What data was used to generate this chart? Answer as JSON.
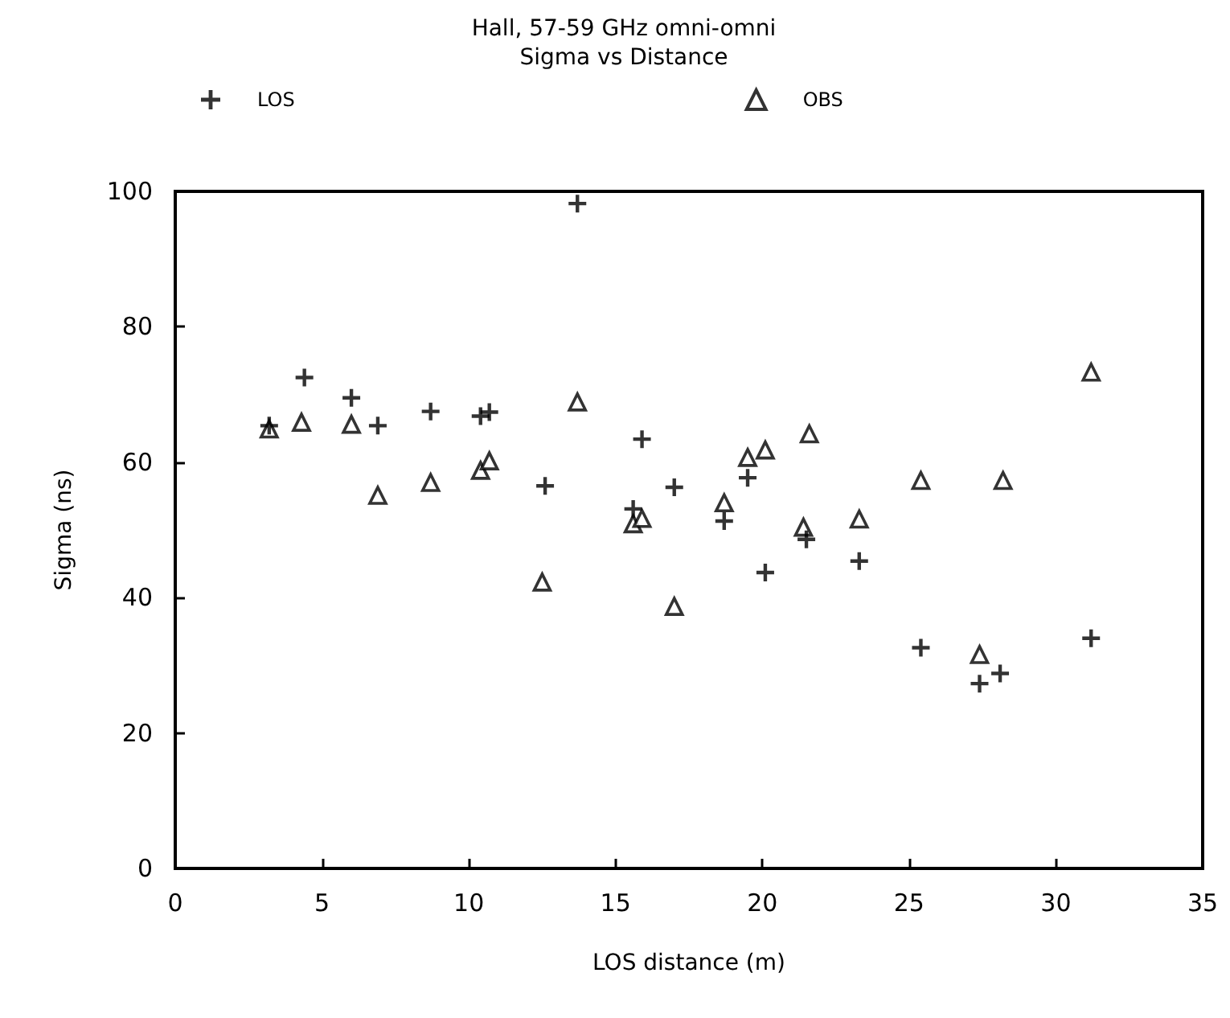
{
  "chart_data": {
    "type": "scatter",
    "title": "Hall, 57-59 GHz omni-omni",
    "subtitle": "Sigma vs Distance",
    "xlabel": "LOS distance (m)",
    "ylabel": "Sigma (ns)",
    "xlim": [
      0,
      35
    ],
    "xticks": [
      0,
      5,
      10,
      15,
      20,
      25,
      30,
      35
    ],
    "ylim": [
      0,
      100
    ],
    "yticks": [
      0,
      20,
      40,
      60,
      80,
      100
    ],
    "grid": false,
    "legend": "top",
    "series": [
      {
        "name": "LOS",
        "color": "#000000",
        "marker": "cross",
        "x": [
          3.2,
          4.4,
          6.0,
          6.9,
          8.7,
          10.4,
          10.7,
          13.7,
          12.6,
          15.9,
          15.6,
          17.0,
          18.7,
          19.5,
          20.1,
          21.5,
          23.3,
          25.4,
          27.4,
          28.1,
          31.2
        ],
        "values": [
          65.4,
          72.5,
          69.5,
          65.4,
          67.5,
          66.8,
          67.4,
          98.2,
          56.5,
          63.4,
          53.1,
          56.3,
          51.3,
          57.7,
          43.7,
          48.6,
          45.4,
          32.6,
          27.3,
          28.8,
          34.0
        ]
      },
      {
        "name": "OBS",
        "color": "#000000",
        "marker": "triangle",
        "x": [
          3.2,
          4.3,
          6.0,
          6.9,
          8.7,
          10.4,
          10.7,
          13.7,
          12.5,
          15.6,
          15.9,
          17.0,
          18.7,
          19.5,
          20.1,
          21.6,
          21.4,
          23.3,
          25.4,
          28.2,
          27.4,
          31.2
        ],
        "values": [
          64.9,
          65.9,
          65.6,
          55.1,
          57.0,
          58.8,
          60.2,
          68.9,
          42.3,
          50.9,
          51.7,
          38.7,
          54.0,
          60.7,
          61.8,
          64.2,
          50.4,
          51.6,
          57.3,
          57.3,
          31.6,
          73.3
        ]
      }
    ]
  }
}
